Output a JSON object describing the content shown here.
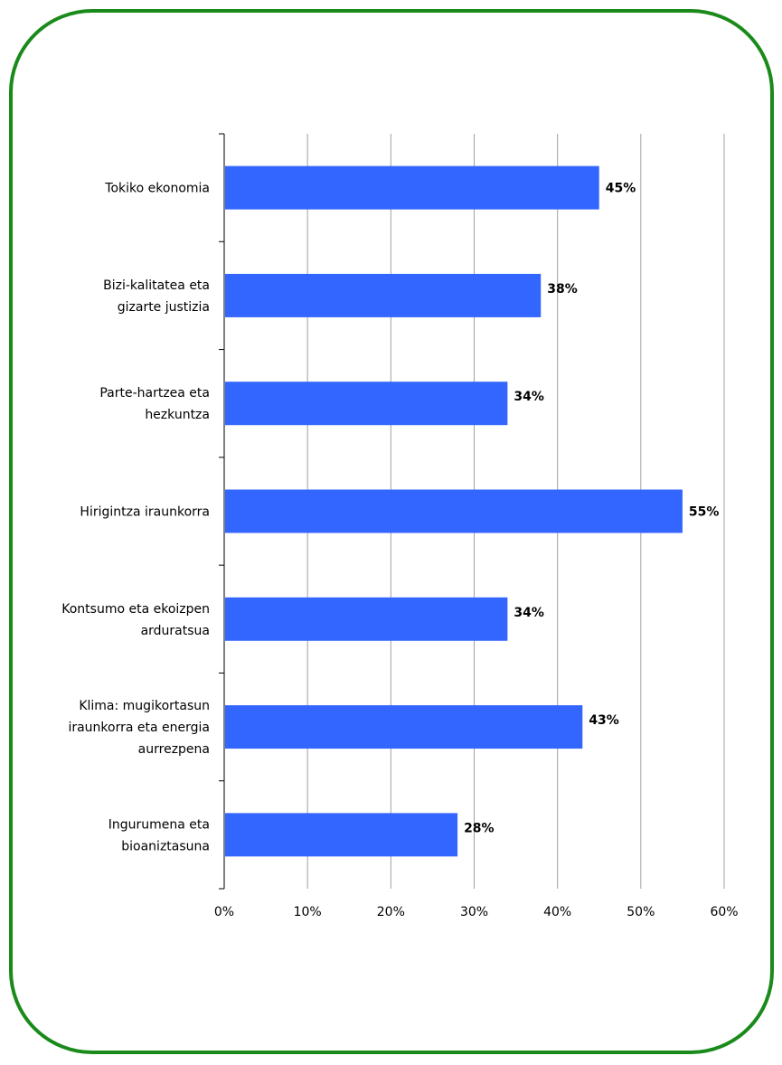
{
  "chart_data": {
    "type": "bar",
    "orientation": "horizontal",
    "title": "",
    "xlabel": "",
    "ylabel": "",
    "categories": [
      [
        "Tokiko ekonomia"
      ],
      [
        "Bizi-kalitatea eta",
        "gizarte justizia"
      ],
      [
        "Parte-hartzea eta",
        "hezkuntza"
      ],
      [
        "Hirigintza iraunkorra"
      ],
      [
        "Kontsumo eta ekoizpen",
        "arduratsua"
      ],
      [
        "Klima: mugikortasun",
        "iraunkorra eta energia",
        "aurrezpena"
      ],
      [
        "Ingurumena eta",
        "bioaniztasuna"
      ]
    ],
    "values": [
      45,
      38,
      34,
      55,
      34,
      43,
      28
    ],
    "value_labels": [
      "45%",
      "38%",
      "34%",
      "55%",
      "34%",
      "43%",
      "28%"
    ],
    "xlim": [
      0,
      60
    ],
    "x_ticks": [
      0,
      10,
      20,
      30,
      40,
      50,
      60
    ],
    "x_tick_labels": [
      "0%",
      "10%",
      "20%",
      "30%",
      "40%",
      "50%",
      "60%"
    ],
    "grid": "vertical",
    "legend": "none",
    "bar_color": "#3366ff",
    "grid_color": "#a0a0a0",
    "frame_color": "#1a8a1a"
  }
}
